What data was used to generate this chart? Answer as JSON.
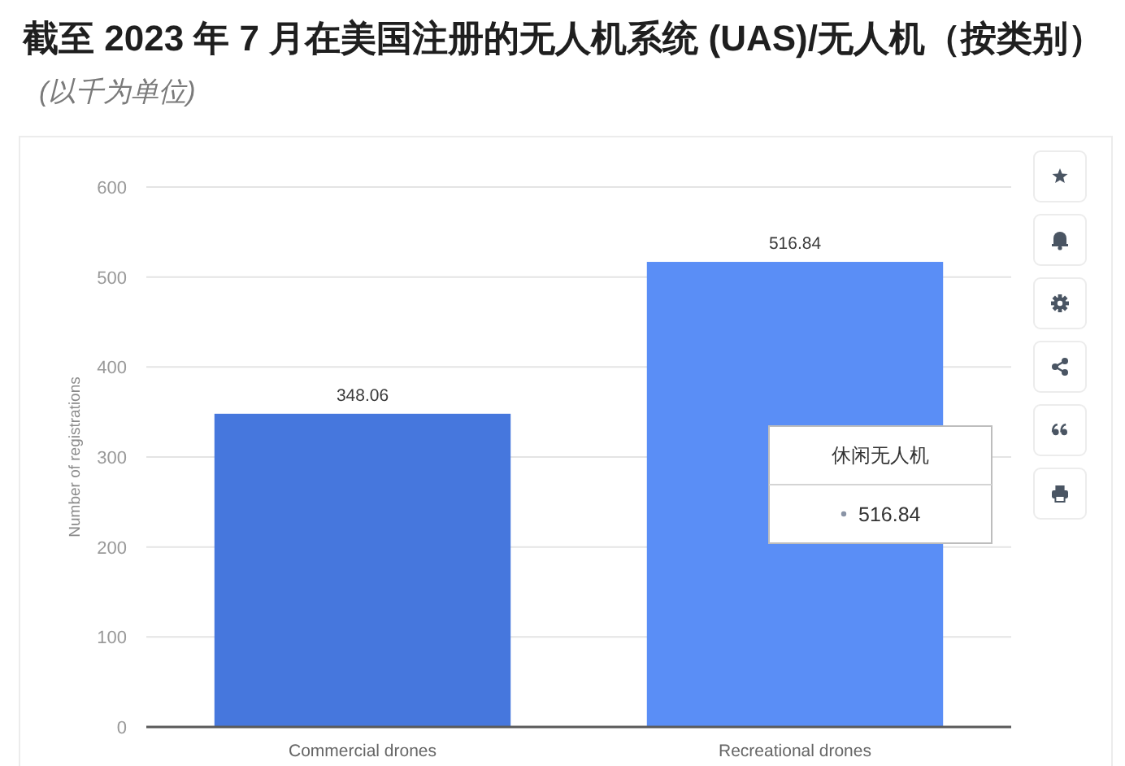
{
  "chart_data": {
    "type": "bar",
    "title": "截至 2023 年 7 月在美国注册的无人机系统 (UAS)/无人机（按类别）",
    "subtitle": "(以千为单位)",
    "ylabel": "Number of registrations",
    "categories": [
      "Commercial drones",
      "Recreational drones"
    ],
    "values": [
      348.06,
      516.84
    ],
    "colors": [
      "#4677dd",
      "#5a8ef6"
    ],
    "ylim": [
      0,
      600
    ],
    "yticks": [
      0,
      100,
      200,
      300,
      400,
      500,
      600
    ],
    "grid": "y",
    "data_labels": true,
    "annotations": [
      "休闲无人机",
      "516.84"
    ]
  }
}
